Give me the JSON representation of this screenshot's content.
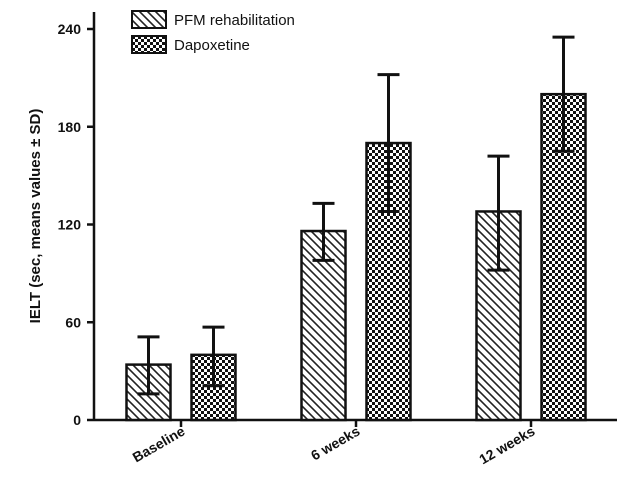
{
  "chart_data": {
    "type": "bar",
    "title": "",
    "xlabel": "",
    "ylabel": "IELT (sec, means values ± SD)",
    "ylim": [
      0,
      240
    ],
    "yticks": [
      0,
      60,
      120,
      180,
      240
    ],
    "categories": [
      "Baseline",
      "6 weeks",
      "12 weeks"
    ],
    "legend_position": "top-left",
    "grid": false,
    "series": [
      {
        "name": "PFM rehabilitation",
        "pattern": "diagonal-hatch",
        "values": [
          34,
          116,
          128
        ],
        "error_high": [
          51,
          133,
          162
        ],
        "error_low": [
          16,
          98,
          92
        ]
      },
      {
        "name": "Dapoxetine",
        "pattern": "checkerboard",
        "values": [
          40,
          170,
          200
        ],
        "error_high": [
          57,
          212,
          235
        ],
        "error_low": [
          21,
          128,
          165
        ]
      }
    ]
  }
}
